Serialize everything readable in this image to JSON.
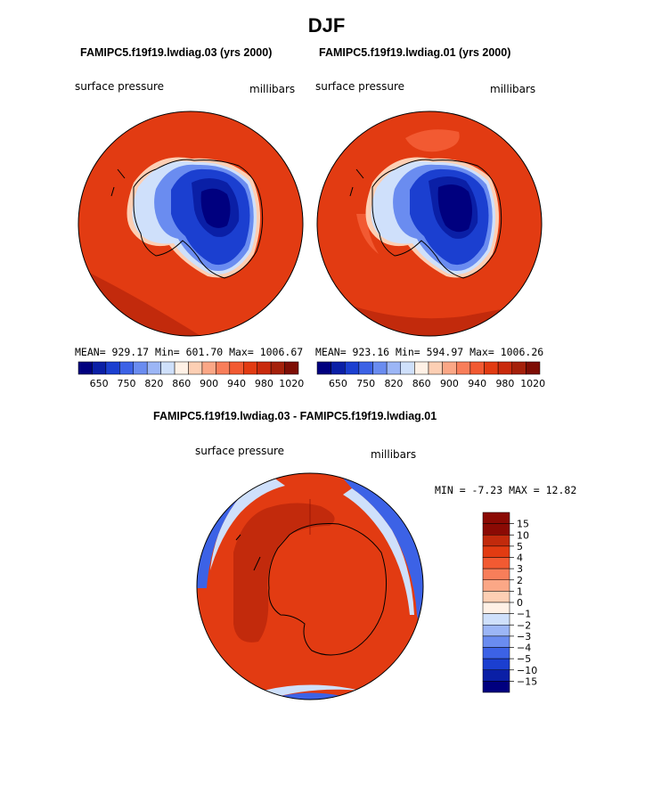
{
  "page_title": "DJF",
  "panels": {
    "left": {
      "title": "FAMIPC5.f19f19.lwdiag.03 (yrs 2000)",
      "field": "surface pressure",
      "units": "millibars",
      "stats": "MEAN= 929.17  Min= 601.70  Max= 1006.67"
    },
    "right": {
      "title": "FAMIPC5.f19f19.lwdiag.01 (yrs 2000)",
      "field": "surface pressure",
      "units": "millibars",
      "stats": "MEAN= 923.16  Min= 594.97  Max= 1006.26"
    },
    "diff": {
      "title": "FAMIPC5.f19f19.lwdiag.03 - FAMIPC5.f19f19.lwdiag.01",
      "field": "surface pressure",
      "units": "millibars",
      "stats": "MIN =  -7.23 MAX =  12.82"
    }
  },
  "chart_data": [
    {
      "type": "heatmap",
      "title": "FAMIPC5.f19f19.lwdiag.03 (yrs 2000)",
      "projection": "south polar stereographic",
      "field": "surface pressure",
      "units": "millibars",
      "mean": 929.17,
      "min": 601.7,
      "max": 1006.67,
      "colorbar_labels": [
        "650",
        "750",
        "820",
        "860",
        "900",
        "940",
        "980",
        "1020"
      ],
      "colors": [
        "#00007f",
        "#0a1fa6",
        "#1b3fd0",
        "#3c62e6",
        "#6a8cf0",
        "#9cb6f6",
        "#cfe0fb",
        "#fff1e6",
        "#fdcfb4",
        "#fba786",
        "#f87e5a",
        "#f25a32",
        "#e23b12",
        "#c92a0c",
        "#a5200a",
        "#7e0d04"
      ]
    },
    {
      "type": "heatmap",
      "title": "FAMIPC5.f19f19.lwdiag.01 (yrs 2000)",
      "projection": "south polar stereographic",
      "field": "surface pressure",
      "units": "millibars",
      "mean": 923.16,
      "min": 594.97,
      "max": 1006.26,
      "colorbar_labels": [
        "650",
        "750",
        "820",
        "860",
        "900",
        "940",
        "980",
        "1020"
      ],
      "colors": [
        "#00007f",
        "#0a1fa6",
        "#1b3fd0",
        "#3c62e6",
        "#6a8cf0",
        "#9cb6f6",
        "#cfe0fb",
        "#fff1e6",
        "#fdcfb4",
        "#fba786",
        "#f87e5a",
        "#f25a32",
        "#e23b12",
        "#c92a0c",
        "#a5200a",
        "#7e0d04"
      ]
    },
    {
      "type": "heatmap",
      "title": "FAMIPC5.f19f19.lwdiag.03 - FAMIPC5.f19f19.lwdiag.01",
      "projection": "south polar stereographic",
      "field": "surface pressure",
      "units": "millibars",
      "min": -7.23,
      "max": 12.82,
      "colorbar_labels": [
        "15",
        "10",
        "5",
        "4",
        "3",
        "2",
        "1",
        "0",
        "−1",
        "−2",
        "−3",
        "−4",
        "−5",
        "−10",
        "−15"
      ],
      "colors": [
        "#8b0a04",
        "#c22a0c",
        "#e23b12",
        "#f25a32",
        "#f87e5a",
        "#fba786",
        "#fdcfb4",
        "#fff1e6",
        "#cfe0fb",
        "#9cb6f6",
        "#6a8cf0",
        "#3c62e6",
        "#1b3fd0",
        "#0a1fa6",
        "#00007f"
      ]
    }
  ]
}
